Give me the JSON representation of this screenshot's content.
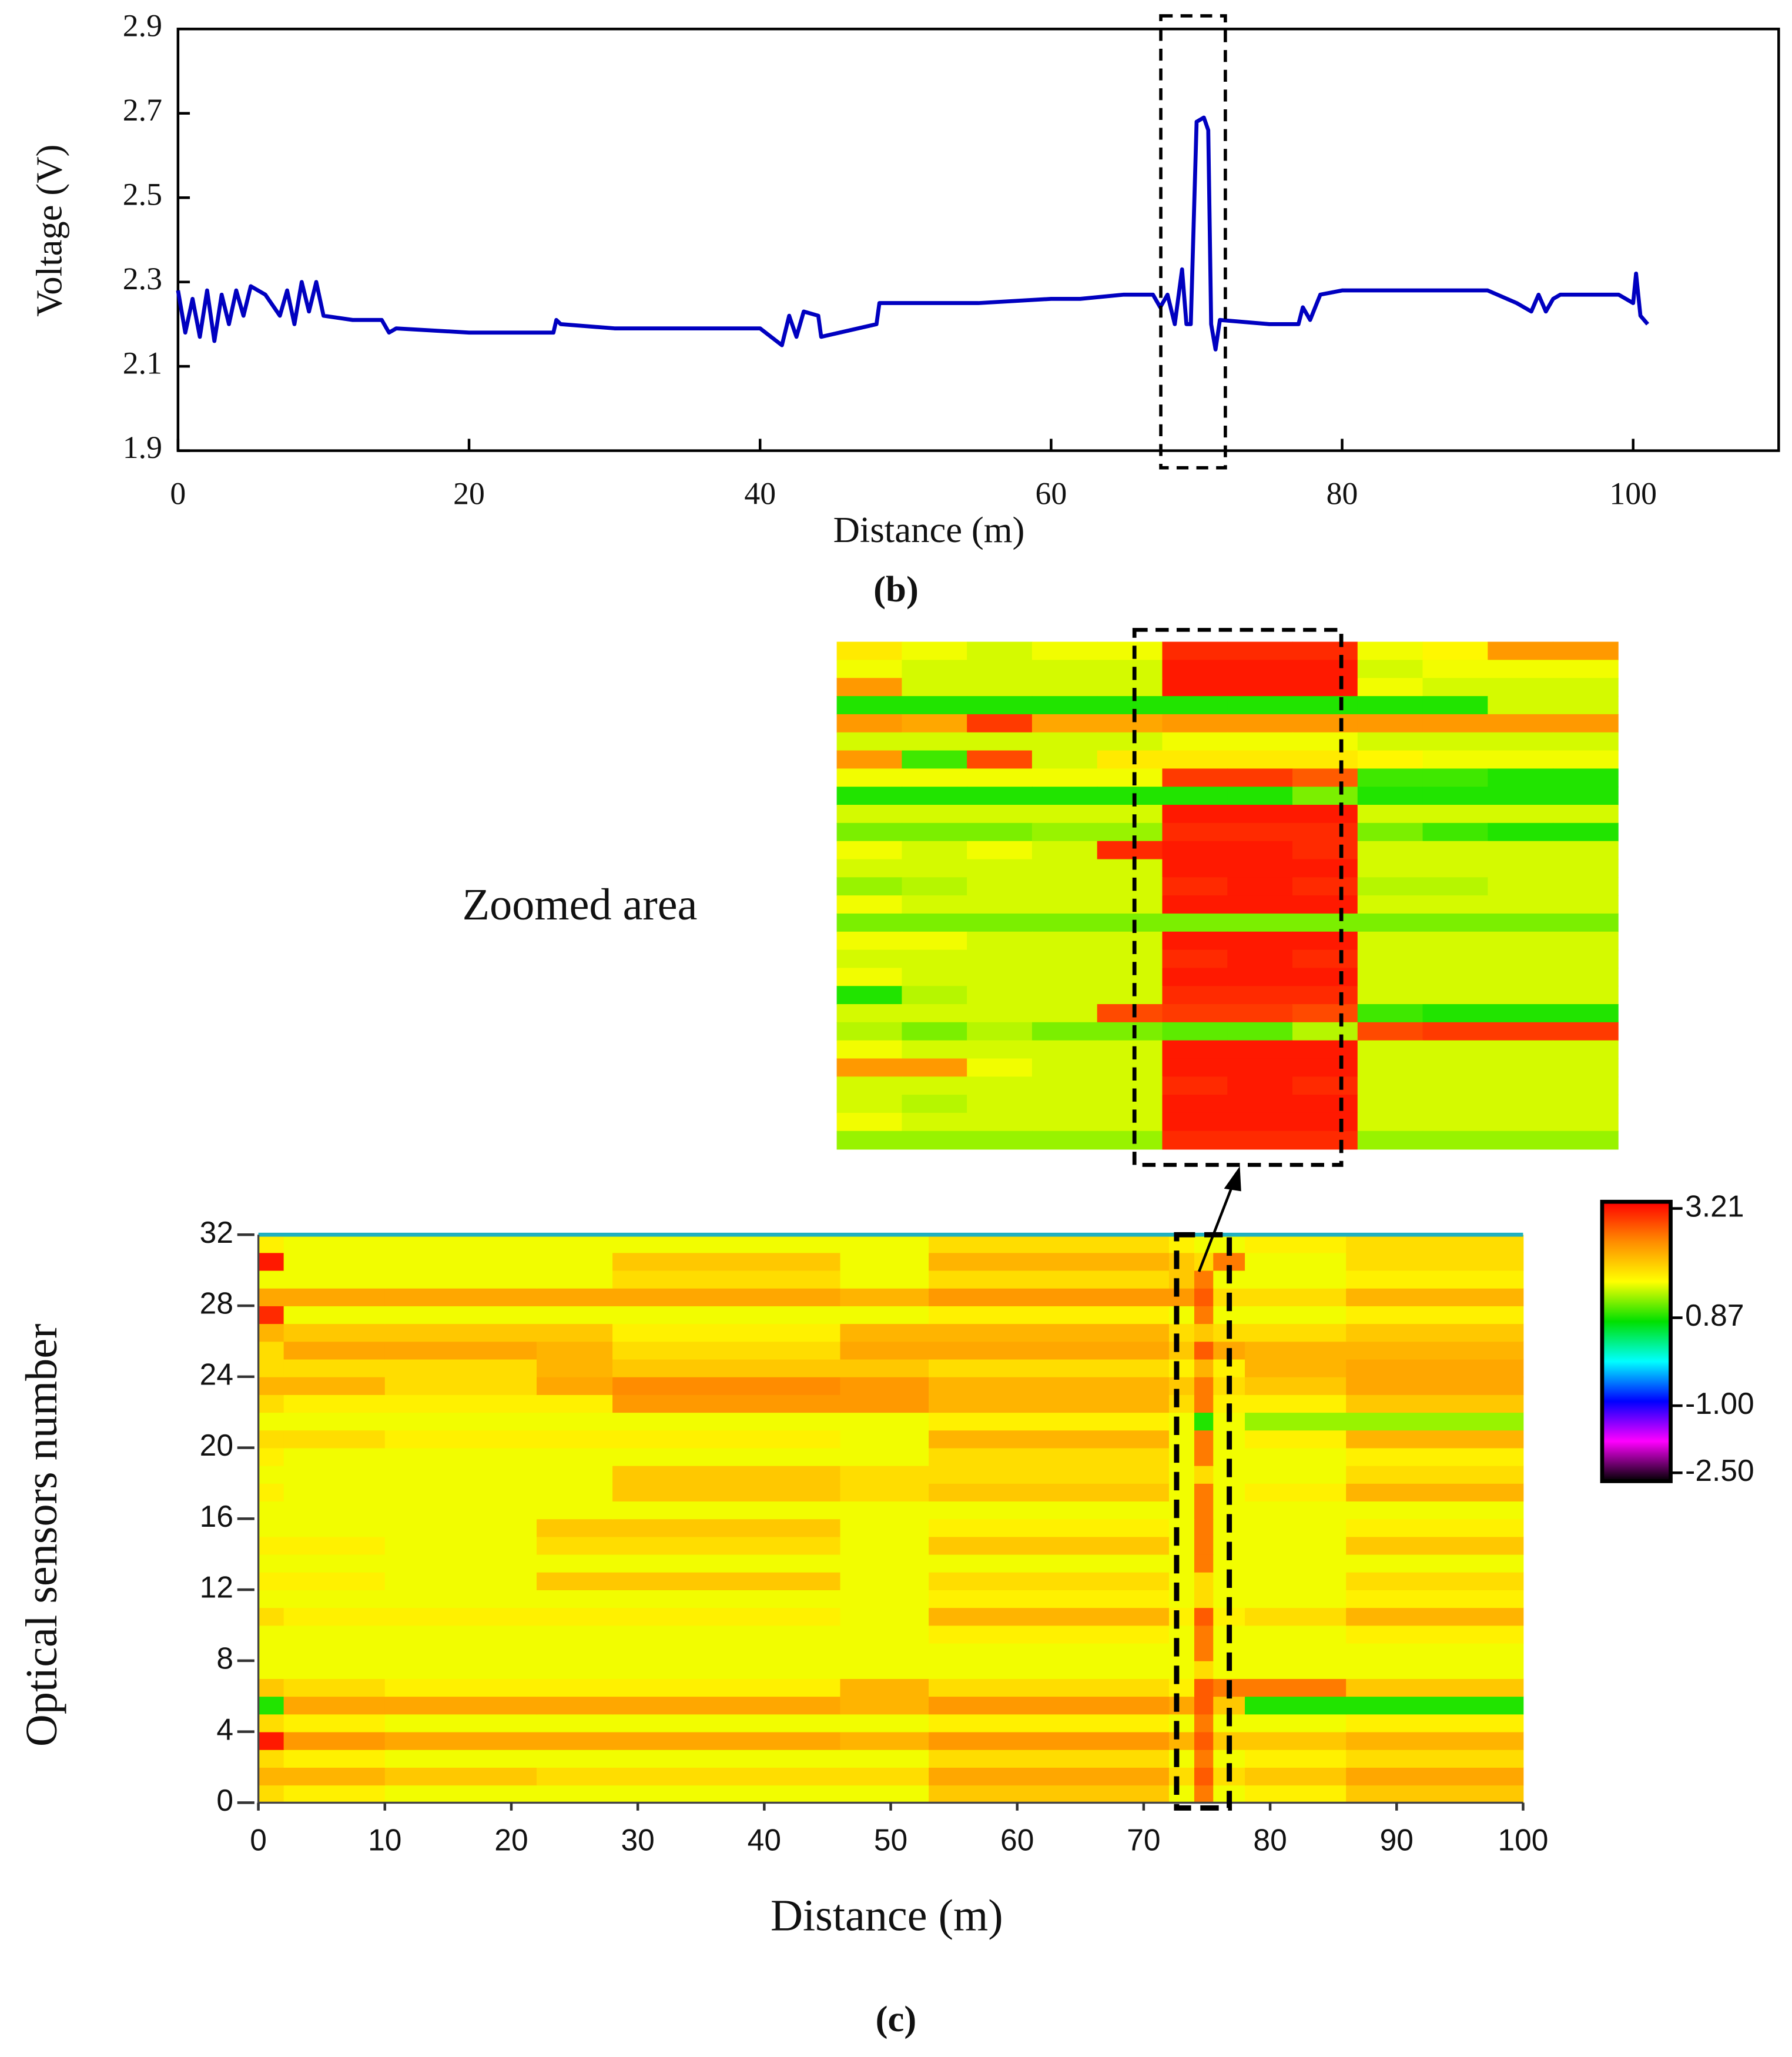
{
  "chart_data": [
    {
      "type": "line",
      "caption": "(b)",
      "xlabel": "Distance (m)",
      "ylabel": "Voltage (V)",
      "x": [
        0,
        0.5,
        1,
        1.5,
        2,
        2.5,
        3,
        3.5,
        4,
        4.5,
        5,
        6,
        7,
        7.5,
        8,
        8.5,
        9,
        9.5,
        10,
        12,
        14,
        14.5,
        15,
        20,
        22,
        25.8,
        26,
        26.3,
        30,
        40,
        41.5,
        42,
        42.5,
        43,
        44,
        44.2,
        48,
        48.2,
        50,
        55,
        60,
        62,
        65,
        67,
        67.5,
        68,
        68.5,
        69,
        69.3,
        69.6,
        70,
        70.5,
        70.8,
        71,
        71.3,
        71.6,
        75,
        77,
        77.3,
        77.8,
        78.5,
        80,
        82,
        85,
        90,
        92,
        93,
        93.5,
        94,
        94.5,
        95,
        97,
        99,
        100,
        100.2,
        100.5,
        101
      ],
      "series": [
        {
          "color": "#0000c0",
          "values": [
            2.28,
            2.18,
            2.26,
            2.17,
            2.28,
            2.16,
            2.27,
            2.2,
            2.28,
            2.22,
            2.29,
            2.27,
            2.22,
            2.28,
            2.2,
            2.3,
            2.23,
            2.3,
            2.22,
            2.21,
            2.21,
            2.18,
            2.19,
            2.18,
            2.18,
            2.18,
            2.21,
            2.2,
            2.19,
            2.19,
            2.15,
            2.22,
            2.17,
            2.23,
            2.22,
            2.17,
            2.2,
            2.25,
            2.25,
            2.25,
            2.26,
            2.26,
            2.27,
            2.27,
            2.24,
            2.27,
            2.2,
            2.33,
            2.2,
            2.2,
            2.68,
            2.69,
            2.66,
            2.2,
            2.14,
            2.21,
            2.2,
            2.2,
            2.24,
            2.21,
            2.27,
            2.28,
            2.28,
            2.28,
            2.28,
            2.25,
            2.23,
            2.27,
            2.23,
            2.26,
            2.27,
            2.27,
            2.27,
            2.25,
            2.32,
            2.22,
            2.2
          ]
        }
      ],
      "xlim": [
        0,
        110
      ],
      "ylim": [
        1.9,
        2.9
      ],
      "xticks": [
        0,
        20,
        40,
        60,
        80,
        100
      ],
      "yticks": [
        1.9,
        2.1,
        2.3,
        2.5,
        2.7,
        2.9
      ]
    },
    {
      "type": "heatmap",
      "caption": "(c)",
      "xlabel": "Distance (m)",
      "ylabel": "Optical sensors number",
      "xbins": [
        0,
        2,
        10,
        22,
        28,
        46,
        53,
        72,
        74,
        75.5,
        78,
        86,
        100
      ],
      "values": [
        [
          1.9,
          1.75,
          1.6,
          1.6,
          1.6,
          1.6,
          2.05,
          1.6,
          2.6,
          1.6,
          1.75,
          2.05
        ],
        [
          2.2,
          2.2,
          2.05,
          1.9,
          1.9,
          1.9,
          2.3,
          1.9,
          2.8,
          1.9,
          2.05,
          2.3
        ],
        [
          1.9,
          1.75,
          1.6,
          1.6,
          1.6,
          1.6,
          1.9,
          1.6,
          2.6,
          1.6,
          1.75,
          1.9
        ],
        [
          3.2,
          2.4,
          2.3,
          2.3,
          2.3,
          2.2,
          2.4,
          2.2,
          2.8,
          2.05,
          2.05,
          2.2
        ],
        [
          1.9,
          1.75,
          1.6,
          1.6,
          1.6,
          1.6,
          1.75,
          1.6,
          2.6,
          1.6,
          1.6,
          1.75
        ],
        [
          0.9,
          2.3,
          2.3,
          2.3,
          2.3,
          2.2,
          2.4,
          2.3,
          2.8,
          2.05,
          0.9,
          0.9
        ],
        [
          2.05,
          1.9,
          1.75,
          1.75,
          1.75,
          2.2,
          1.9,
          1.75,
          2.8,
          2.6,
          2.6,
          2.05
        ],
        [
          1.6,
          1.6,
          1.6,
          1.6,
          1.6,
          1.6,
          1.6,
          1.6,
          1.9,
          1.6,
          1.6,
          1.6
        ],
        [
          1.6,
          1.6,
          1.6,
          1.6,
          1.6,
          1.6,
          1.6,
          1.6,
          2.6,
          1.6,
          1.6,
          1.6
        ],
        [
          1.6,
          1.6,
          1.6,
          1.6,
          1.6,
          1.6,
          1.75,
          1.6,
          2.6,
          1.6,
          1.6,
          1.75
        ],
        [
          1.9,
          1.75,
          1.75,
          1.75,
          1.75,
          1.6,
          2.2,
          1.75,
          2.8,
          1.75,
          1.9,
          2.2
        ],
        [
          1.6,
          1.6,
          1.6,
          1.6,
          1.6,
          1.6,
          1.75,
          1.6,
          1.9,
          1.6,
          1.6,
          1.75
        ],
        [
          1.75,
          1.75,
          1.6,
          2.05,
          2.05,
          1.6,
          1.9,
          1.6,
          1.9,
          1.6,
          1.6,
          1.9
        ],
        [
          1.6,
          1.6,
          1.6,
          1.6,
          1.6,
          1.6,
          1.6,
          1.6,
          2.6,
          1.6,
          1.6,
          1.6
        ],
        [
          1.75,
          1.75,
          1.6,
          1.9,
          1.9,
          1.6,
          2.05,
          1.6,
          2.6,
          1.6,
          1.6,
          2.05
        ],
        [
          1.6,
          1.6,
          1.6,
          2.05,
          2.05,
          1.6,
          1.75,
          1.6,
          2.6,
          1.6,
          1.6,
          1.75
        ],
        [
          1.6,
          1.6,
          1.6,
          1.6,
          1.6,
          1.6,
          1.6,
          1.6,
          2.6,
          1.6,
          1.6,
          1.6
        ],
        [
          1.75,
          1.6,
          1.6,
          1.6,
          2.05,
          1.9,
          2.05,
          1.6,
          2.6,
          1.6,
          1.75,
          2.2
        ],
        [
          1.6,
          1.6,
          1.6,
          1.6,
          2.05,
          1.9,
          1.9,
          1.6,
          1.9,
          1.6,
          1.6,
          1.9
        ],
        [
          1.75,
          1.6,
          1.6,
          1.6,
          1.6,
          1.6,
          1.9,
          1.6,
          2.6,
          1.6,
          1.6,
          1.75
        ],
        [
          1.9,
          1.9,
          1.75,
          1.75,
          1.75,
          1.6,
          2.2,
          1.6,
          2.6,
          1.6,
          1.75,
          2.2
        ],
        [
          1.6,
          1.6,
          1.6,
          1.6,
          1.6,
          1.6,
          1.75,
          1.6,
          0.9,
          1.6,
          1.3,
          1.3
        ],
        [
          1.9,
          1.75,
          1.75,
          1.75,
          2.4,
          2.4,
          2.2,
          1.9,
          2.6,
          1.75,
          1.75,
          2.05
        ],
        [
          2.2,
          2.2,
          1.9,
          2.3,
          2.5,
          2.4,
          2.2,
          2.05,
          2.6,
          1.9,
          2.05,
          2.3
        ],
        [
          1.9,
          1.9,
          1.9,
          2.2,
          2.05,
          2.05,
          1.9,
          1.75,
          2.2,
          1.75,
          2.2,
          2.3
        ],
        [
          1.9,
          2.3,
          2.3,
          2.2,
          1.9,
          2.3,
          2.3,
          2.05,
          2.8,
          2.3,
          2.2,
          2.2
        ],
        [
          2.2,
          2.05,
          2.05,
          2.05,
          1.75,
          2.2,
          2.2,
          1.9,
          2.05,
          1.9,
          1.9,
          2.05
        ],
        [
          3.1,
          1.6,
          1.6,
          1.6,
          1.6,
          1.6,
          1.75,
          1.6,
          2.6,
          1.6,
          1.6,
          1.75
        ],
        [
          2.3,
          2.3,
          2.3,
          2.3,
          2.3,
          2.2,
          2.4,
          2.4,
          2.8,
          1.9,
          1.9,
          2.2
        ],
        [
          1.6,
          1.6,
          1.6,
          1.6,
          1.9,
          1.6,
          1.9,
          2.05,
          2.6,
          1.6,
          1.6,
          1.75
        ],
        [
          3.2,
          1.6,
          1.6,
          1.6,
          2.05,
          1.6,
          2.2,
          2.05,
          1.9,
          2.6,
          1.6,
          1.9
        ],
        [
          1.75,
          1.6,
          1.6,
          1.6,
          1.6,
          1.6,
          1.9,
          1.75,
          1.6,
          1.6,
          1.75,
          1.9
        ]
      ],
      "xlim": [
        0,
        100
      ],
      "ylim": [
        0,
        32
      ],
      "xticks": [
        0,
        10,
        20,
        30,
        40,
        50,
        60,
        70,
        80,
        90,
        100
      ],
      "yticks": [
        0,
        4,
        8,
        12,
        16,
        20,
        24,
        28,
        32
      ],
      "colorbar": {
        "ticks": [
          3.21,
          0.87,
          {
            "value": -1,
            "label": "-1.00"
          },
          {
            "value": -2.5,
            "label": "-2.50"
          }
        ],
        "colors": [
          "#ff0000",
          "#ff8c00",
          "#ffff00",
          "#00e000",
          "#00ffff",
          "#0000ff",
          "#ff00ff",
          "#000000"
        ]
      }
    },
    {
      "type": "heatmap",
      "title": "Zoomed area",
      "values": [
        [
          1.8,
          1.6,
          1.5,
          1.6,
          1.6,
          3.1,
          3.1,
          3.1,
          1.6,
          1.7,
          2.4,
          2.4
        ],
        [
          1.6,
          1.5,
          1.5,
          1.5,
          1.5,
          3.2,
          3.2,
          3.2,
          1.5,
          1.6,
          1.6,
          1.6
        ],
        [
          2.4,
          1.5,
          1.5,
          1.5,
          1.5,
          3.2,
          3.2,
          3.2,
          1.6,
          1.5,
          1.5,
          1.5
        ],
        [
          0.9,
          0.9,
          0.9,
          0.9,
          0.9,
          0.9,
          0.9,
          0.9,
          0.9,
          0.9,
          1.5,
          1.5
        ],
        [
          2.4,
          2.3,
          3.0,
          2.3,
          2.3,
          2.4,
          2.4,
          2.4,
          2.4,
          2.4,
          2.4,
          2.4
        ],
        [
          1.5,
          1.5,
          1.5,
          1.5,
          1.5,
          1.6,
          1.6,
          1.6,
          1.5,
          1.5,
          1.5,
          1.5
        ],
        [
          2.4,
          1.0,
          2.9,
          1.5,
          1.8,
          1.8,
          1.8,
          1.8,
          1.7,
          1.6,
          1.6,
          1.6
        ],
        [
          1.6,
          1.6,
          1.6,
          1.6,
          1.6,
          3.0,
          3.0,
          2.8,
          1.0,
          1.0,
          0.9,
          0.9
        ],
        [
          0.9,
          0.9,
          0.9,
          0.9,
          0.9,
          0.9,
          0.9,
          1.2,
          0.9,
          0.9,
          0.9,
          0.9
        ],
        [
          1.5,
          1.5,
          1.5,
          1.5,
          1.5,
          3.2,
          3.2,
          3.2,
          1.5,
          1.5,
          1.5,
          1.5
        ],
        [
          1.2,
          1.2,
          1.2,
          1.3,
          1.3,
          3.1,
          3.1,
          3.1,
          1.2,
          1.0,
          0.9,
          0.9
        ],
        [
          1.6,
          1.5,
          1.6,
          1.5,
          3.1,
          3.2,
          3.2,
          3.1,
          1.5,
          1.5,
          1.5,
          1.5
        ],
        [
          1.5,
          1.5,
          1.5,
          1.5,
          1.5,
          3.2,
          3.2,
          3.2,
          1.5,
          1.5,
          1.5,
          1.5
        ],
        [
          1.3,
          1.4,
          1.5,
          1.5,
          1.5,
          3.1,
          3.2,
          3.1,
          1.4,
          1.4,
          1.5,
          1.5
        ],
        [
          1.6,
          1.5,
          1.5,
          1.5,
          1.5,
          3.2,
          3.2,
          3.2,
          1.5,
          1.5,
          1.5,
          1.5
        ],
        [
          1.2,
          1.2,
          1.2,
          1.2,
          1.2,
          1.2,
          1.2,
          1.2,
          1.2,
          1.2,
          1.2,
          1.2
        ],
        [
          1.6,
          1.6,
          1.5,
          1.5,
          1.5,
          3.2,
          3.2,
          3.2,
          1.5,
          1.5,
          1.5,
          1.5
        ],
        [
          1.5,
          1.5,
          1.5,
          1.5,
          1.5,
          3.1,
          3.2,
          3.1,
          1.5,
          1.5,
          1.5,
          1.5
        ],
        [
          1.6,
          1.5,
          1.5,
          1.5,
          1.5,
          3.2,
          3.2,
          3.2,
          1.5,
          1.5,
          1.5,
          1.5
        ],
        [
          0.9,
          1.4,
          1.5,
          1.5,
          1.5,
          3.1,
          3.1,
          3.1,
          1.5,
          1.5,
          1.5,
          1.5
        ],
        [
          1.5,
          1.5,
          1.5,
          1.5,
          2.9,
          3.0,
          3.0,
          2.9,
          1.0,
          0.9,
          0.9,
          0.9
        ],
        [
          1.4,
          1.2,
          1.4,
          1.2,
          1.2,
          1.1,
          1.1,
          1.4,
          2.9,
          3.0,
          3.0,
          3.0
        ],
        [
          1.6,
          1.5,
          1.5,
          1.5,
          1.5,
          3.2,
          3.2,
          3.2,
          1.5,
          1.5,
          1.5,
          1.5
        ],
        [
          2.4,
          2.4,
          1.6,
          1.5,
          1.5,
          3.2,
          3.2,
          3.2,
          1.5,
          1.5,
          1.5,
          1.5
        ],
        [
          1.5,
          1.5,
          1.5,
          1.5,
          1.5,
          3.1,
          3.2,
          3.1,
          1.5,
          1.5,
          1.5,
          1.5
        ],
        [
          1.5,
          1.4,
          1.5,
          1.5,
          1.5,
          3.2,
          3.2,
          3.2,
          1.5,
          1.5,
          1.5,
          1.5
        ],
        [
          1.6,
          1.5,
          1.5,
          1.5,
          1.5,
          3.2,
          3.2,
          3.2,
          1.5,
          1.5,
          1.5,
          1.5
        ],
        [
          1.3,
          1.3,
          1.3,
          1.3,
          1.3,
          3.1,
          3.1,
          3.1,
          1.3,
          1.3,
          1.3,
          1.3
        ]
      ]
    }
  ]
}
